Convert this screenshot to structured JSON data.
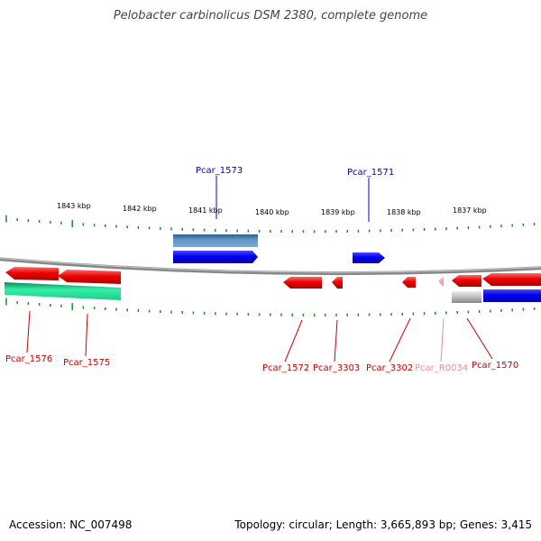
{
  "title": "Pelobacter carbinolicus DSM 2380, complete genome",
  "footer": {
    "accession": "Accession: NC_007498",
    "summary": "Topology: circular; Length: 3,665,893 bp; Genes: 3,415"
  },
  "scale_labels": [
    "1843 kbp",
    "1842 kbp",
    "1841 kbp",
    "1840 kbp",
    "1839 kbp",
    "1838 kbp",
    "1837 kbp"
  ],
  "genes": [
    {
      "id": "Pcar_1573",
      "color": "#0000cc"
    },
    {
      "id": "Pcar_1571",
      "color": "#0000cc"
    },
    {
      "id": "Pcar_1576",
      "color": "#cc0000"
    },
    {
      "id": "Pcar_1575",
      "color": "#cc0000"
    },
    {
      "id": "Pcar_1572",
      "color": "#cc0000"
    },
    {
      "id": "Pcar_3303",
      "color": "#cc0000"
    },
    {
      "id": "Pcar_3302",
      "color": "#cc0000"
    },
    {
      "id": "Pcar_R0034",
      "color": "#ee88aa"
    },
    {
      "id": "Pcar_1570",
      "color": "#cc0000"
    }
  ]
}
